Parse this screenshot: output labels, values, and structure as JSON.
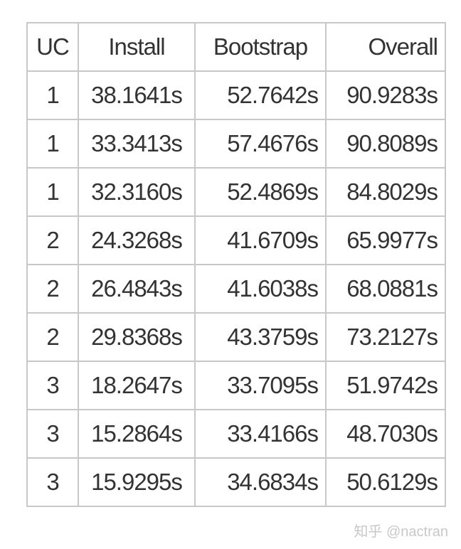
{
  "table": {
    "headers": [
      "UC",
      "Install",
      "Bootstrap",
      "Overall"
    ],
    "rows": [
      [
        "1",
        "38.1641s",
        "52.7642s",
        "90.9283s"
      ],
      [
        "1",
        "33.3413s",
        "57.4676s",
        "90.8089s"
      ],
      [
        "1",
        "32.3160s",
        "52.4869s",
        "84.8029s"
      ],
      [
        "2",
        "24.3268s",
        "41.6709s",
        "65.9977s"
      ],
      [
        "2",
        "26.4843s",
        "41.6038s",
        "68.0881s"
      ],
      [
        "2",
        "29.8368s",
        "43.3759s",
        "73.2127s"
      ],
      [
        "3",
        "18.2647s",
        "33.7095s",
        "51.9742s"
      ],
      [
        "3",
        "15.2864s",
        "33.4166s",
        "48.7030s"
      ],
      [
        "3",
        "15.9295s",
        "34.6834s",
        "50.6129s"
      ]
    ]
  },
  "watermark": "知乎 @nactran"
}
